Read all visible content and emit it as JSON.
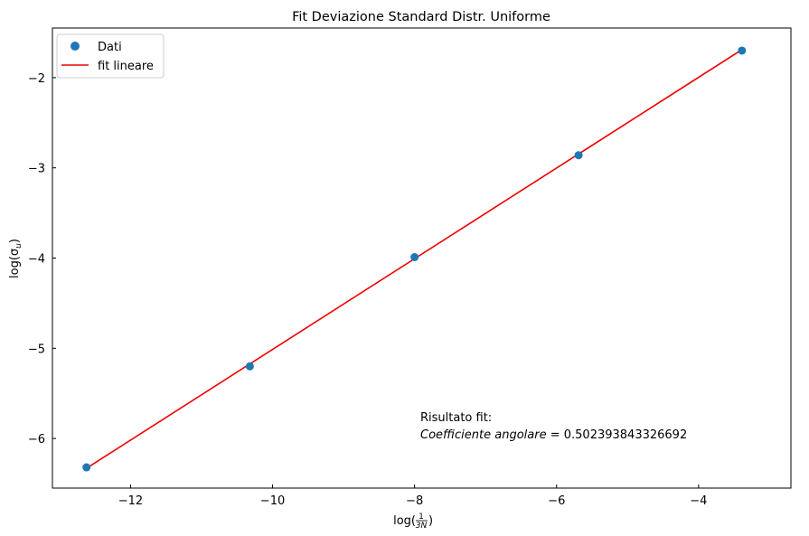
{
  "chart_data": {
    "type": "scatter",
    "title": "Fit Deviazione Standard Distr. Uniforme",
    "xlabel": {
      "pre": "log(",
      "num": "1",
      "den": "3N",
      "post": ")"
    },
    "ylabel": {
      "pre": "log(σ",
      "sub": "u",
      "post": ")"
    },
    "xlim": [
      -13.1,
      -2.7
    ],
    "ylim": [
      -6.55,
      -1.45
    ],
    "xticks": [
      -12,
      -10,
      -8,
      -6,
      -4
    ],
    "yticks": [
      -6,
      -5,
      -4,
      -3,
      -2
    ],
    "xtick_labels": [
      "−12",
      "−10",
      "−8",
      "−6",
      "−4"
    ],
    "ytick_labels": [
      "−6",
      "−5",
      "−4",
      "−3",
      "−2"
    ],
    "grid": false,
    "legend_position": "top-left",
    "series": [
      {
        "name": "Dati",
        "kind": "scatter",
        "color": "#1f77b4",
        "x": [
          -12.62,
          -10.32,
          -8.0,
          -5.69,
          -3.39
        ],
        "y": [
          -6.32,
          -5.2,
          -3.99,
          -2.86,
          -1.7
        ]
      },
      {
        "name": "fit lineare",
        "kind": "line",
        "color": "#ee0000",
        "x": [
          -12.62,
          -3.39
        ],
        "y": [
          -6.33,
          -1.69
        ]
      }
    ],
    "annotation": {
      "line1": "Risultato fit:",
      "line2_italic": "Coefficiente angolare",
      "line2_value": " = 0.502393843326692"
    }
  }
}
